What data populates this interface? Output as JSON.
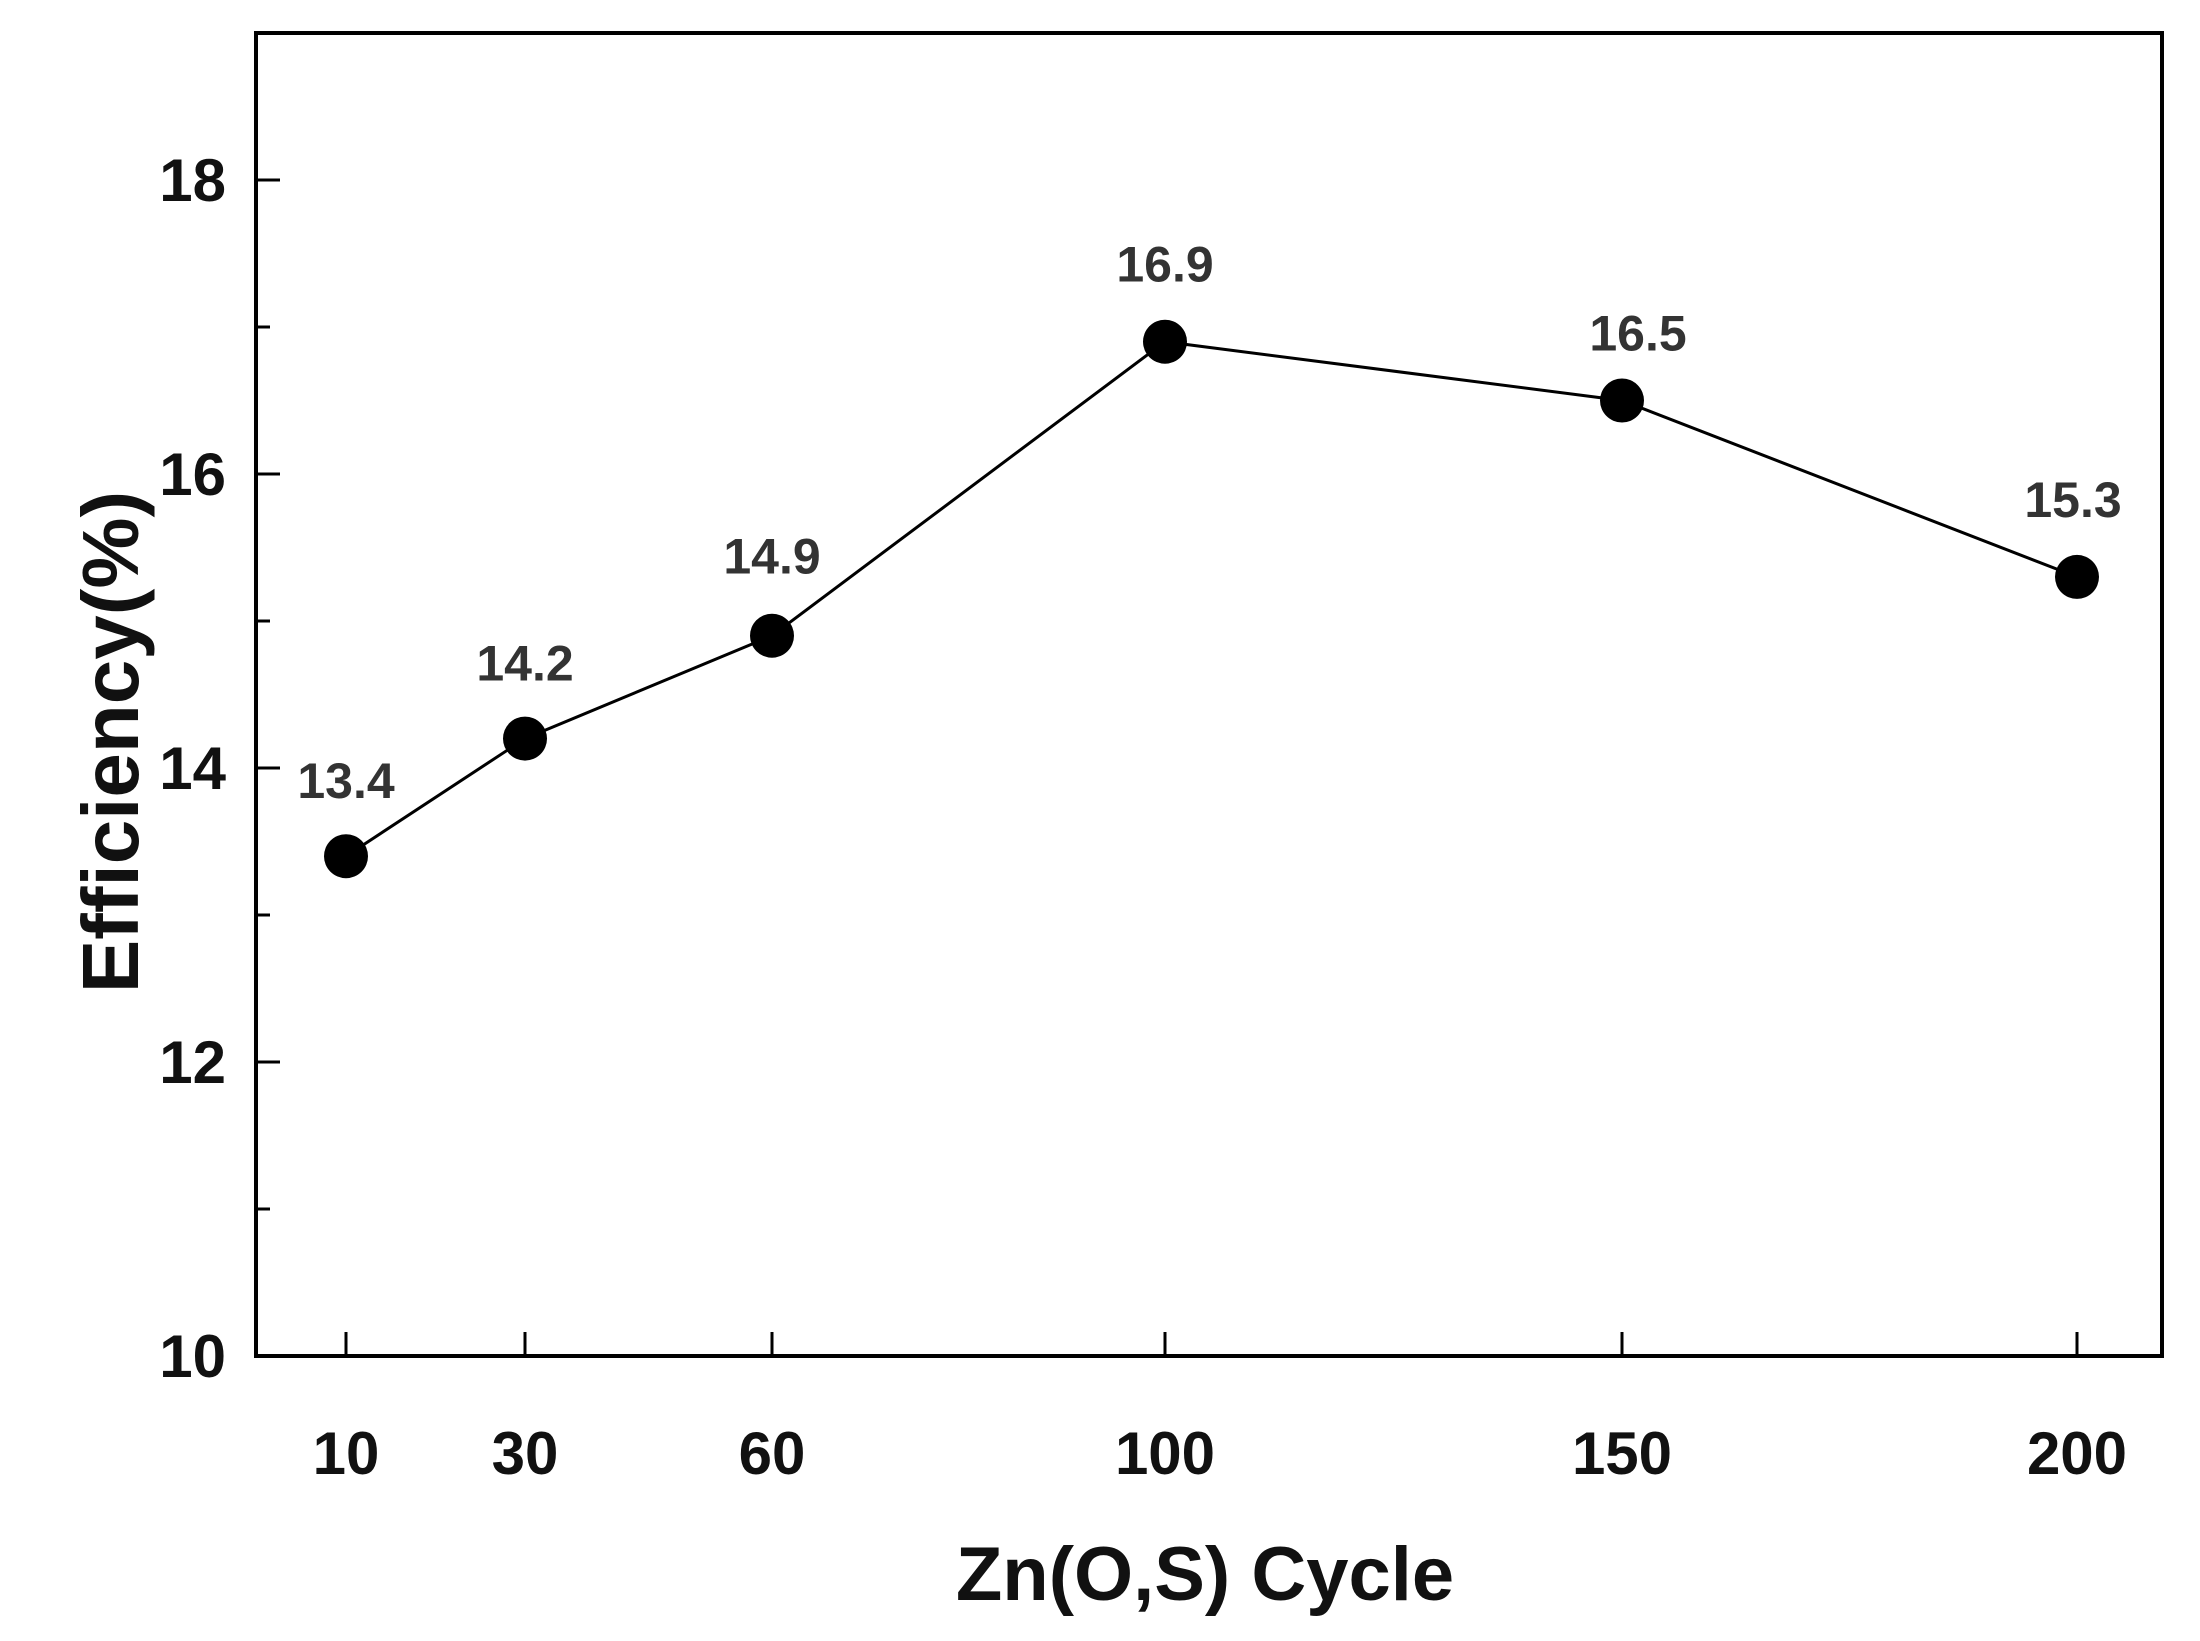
{
  "chart_data": {
    "type": "line",
    "title": "",
    "xlabel": "Zn(O,S) Cycle",
    "ylabel": "Efficiency(%)",
    "x": [
      10,
      30,
      60,
      100,
      150,
      200
    ],
    "x_tick_labels": [
      "10",
      "30",
      "60",
      "100",
      "150",
      "200"
    ],
    "y_ticks": [
      10,
      12,
      14,
      16,
      18
    ],
    "y_tick_labels": [
      "10",
      "12",
      "14",
      "16",
      "18"
    ],
    "ylim": [
      10,
      19
    ],
    "series": [
      {
        "name": "Efficiency",
        "values": [
          13.4,
          14.2,
          14.9,
          16.9,
          16.5,
          15.3
        ],
        "point_labels": [
          "13.4",
          "14.2",
          "14.9",
          "16.9",
          "16.5",
          "15.3"
        ]
      }
    ],
    "marker": "filled-circle",
    "line_color": "#000000",
    "marker_color": "#000000",
    "grid": false,
    "legend": "none"
  }
}
